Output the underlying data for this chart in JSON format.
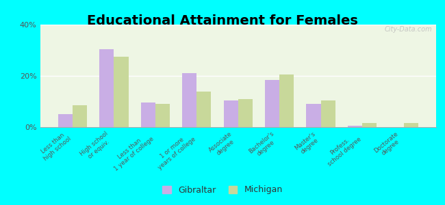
{
  "title": "Educational Attainment for Females",
  "categories": [
    "Less than\nhigh school",
    "High school\nor equiv.",
    "Less than\n1 year of college",
    "1 or more\nyears of college",
    "Associate\ndegree",
    "Bachelor's\ndegree",
    "Master's\ndegree",
    "Profess.\nschool degree",
    "Doctorate\ndegree"
  ],
  "gibraltar": [
    5.0,
    30.5,
    9.5,
    21.0,
    10.5,
    18.5,
    9.0,
    0.5,
    0.0
  ],
  "michigan": [
    8.5,
    27.5,
    9.0,
    14.0,
    11.0,
    20.5,
    10.5,
    1.5,
    1.5
  ],
  "gibraltar_color": "#c9aee5",
  "michigan_color": "#c8d89a",
  "ylim": [
    0,
    40
  ],
  "yticks": [
    0,
    20,
    40
  ],
  "ytick_labels": [
    "0%",
    "20%",
    "40%"
  ],
  "background_top": "#f0f8e8",
  "background_bottom": "#e8f5e8",
  "outer_background": "#00ffff",
  "title_fontsize": 14,
  "bar_width": 0.35,
  "legend_labels": [
    "Gibraltar",
    "Michigan"
  ],
  "watermark": "City-Data.com"
}
